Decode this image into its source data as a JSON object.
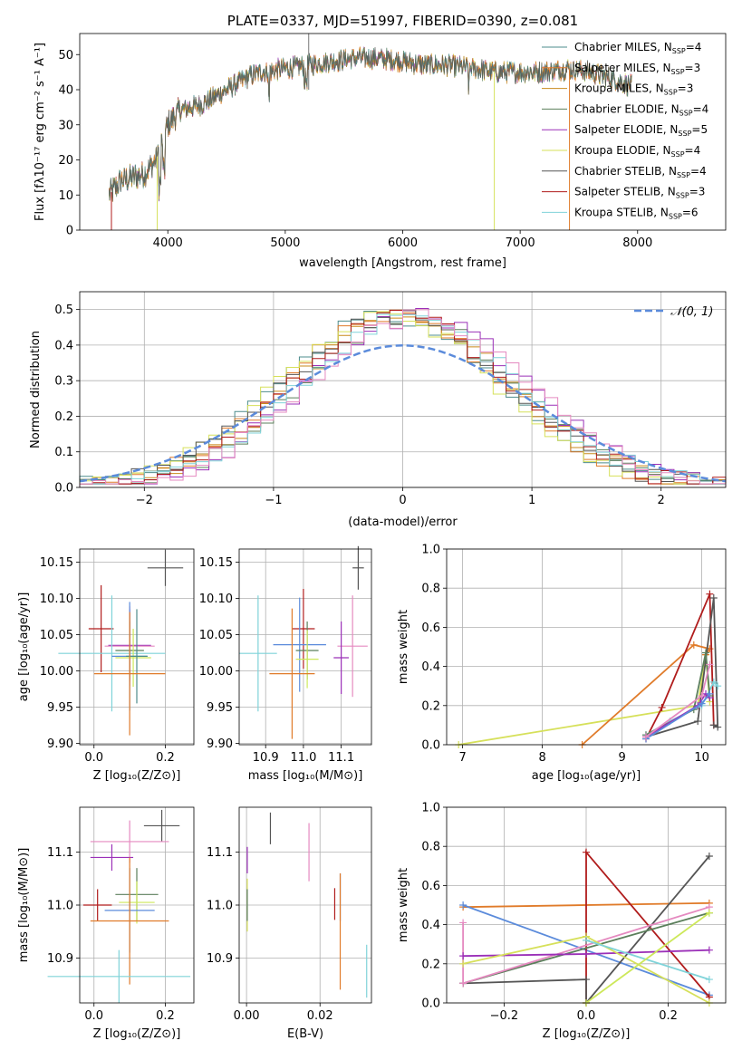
{
  "figure": {
    "colors": {
      "Chabrier MILES": "#4d8c8c",
      "Salpeter MILES": "#e07b2a",
      "Kroupa MILES": "#c98a1b",
      "Chabrier ELODIE": "#5b7f5b",
      "Salpeter ELODIE": "#9b30b8",
      "Kroupa ELODIE": "#d6e05a",
      "Chabrier STELIB": "#555555",
      "Salpeter STELIB": "#b01c1c",
      "Kroupa STELIB": "#7fd3d9",
      "gaussian": "#5b8bdb",
      "extra_pink": "#e58ac0",
      "extra_blue": "#5b8bdb",
      "extra_lime": "#cde85a"
    }
  },
  "chart_data": [
    {
      "id": "spectrum",
      "type": "line",
      "title": "PLATE=0337, MJD=51997, FIBERID=0390, z=0.081",
      "xlabel": "wavelength [Angstrom, rest frame]",
      "ylabel": "Flux [fλ10⁻¹⁷ erg cm⁻² s⁻¹ A⁻¹]",
      "xlim": [
        3250,
        8750
      ],
      "ylim": [
        0,
        56
      ],
      "xticks": [
        "4000",
        "5000",
        "6000",
        "7000",
        "8000"
      ],
      "yticks": [
        "0",
        "10",
        "20",
        "30",
        "40",
        "50"
      ],
      "legend_position": "upper-right",
      "legend": [
        {
          "label": "Chabrier MILES, N",
          "sub": "SSP",
          "eq": "=4"
        },
        {
          "label": "Salpeter MILES, N",
          "sub": "SSP",
          "eq": "=3"
        },
        {
          "label": "Kroupa MILES, N",
          "sub": "SSP",
          "eq": "=3"
        },
        {
          "label": "Chabrier ELODIE, N",
          "sub": "SSP",
          "eq": "=4"
        },
        {
          "label": "Salpeter ELODIE, N",
          "sub": "SSP",
          "eq": "=5"
        },
        {
          "label": "Kroupa ELODIE, N",
          "sub": "SSP",
          "eq": "=4"
        },
        {
          "label": "Chabrier STELIB, N",
          "sub": "SSP",
          "eq": "=4"
        },
        {
          "label": "Salpeter STELIB, N",
          "sub": "SSP",
          "eq": "=3"
        },
        {
          "label": "Kroupa STELIB, N",
          "sub": "SSP",
          "eq": "=6"
        }
      ],
      "continuum": [
        [
          3500,
          10
        ],
        [
          3600,
          14
        ],
        [
          3700,
          15
        ],
        [
          3800,
          16
        ],
        [
          3900,
          20
        ],
        [
          4000,
          30
        ],
        [
          4100,
          34
        ],
        [
          4200,
          35
        ],
        [
          4300,
          36
        ],
        [
          4400,
          38
        ],
        [
          4500,
          40
        ],
        [
          4600,
          42
        ],
        [
          4700,
          44
        ],
        [
          4800,
          45
        ],
        [
          5000,
          46
        ],
        [
          5200,
          47
        ],
        [
          5400,
          48
        ],
        [
          5600,
          49
        ],
        [
          5800,
          49
        ],
        [
          6000,
          48
        ],
        [
          6200,
          47
        ],
        [
          6400,
          47
        ],
        [
          6600,
          46
        ],
        [
          6800,
          45
        ],
        [
          7000,
          45
        ],
        [
          7200,
          45
        ],
        [
          7400,
          46
        ],
        [
          7600,
          45
        ],
        [
          7800,
          43
        ],
        [
          7950,
          41
        ]
      ]
    },
    {
      "id": "residuals",
      "type": "histogram",
      "xlabel": "(data-model)/error",
      "ylabel": "Normed distribution",
      "xlim": [
        -2.5,
        2.5
      ],
      "ylim": [
        0,
        0.55
      ],
      "xticks": [
        "−2",
        "−1",
        "0",
        "1",
        "2"
      ],
      "yticks": [
        "0.0",
        "0.1",
        "0.2",
        "0.3",
        "0.4",
        "0.5"
      ],
      "legend": [
        "𝒩(0, 1)"
      ],
      "gaussian": {
        "mean": 0,
        "sigma": 1
      }
    },
    {
      "id": "age_vs_Z",
      "type": "errorbar",
      "xlabel": "Z [log₁₀(Z/Z⊙)]",
      "ylabel": "age  [log₁₀(age/yr)]",
      "xlim": [
        -0.04,
        0.28
      ],
      "ylim": [
        9.898,
        10.168
      ],
      "xticks": [
        "0.0",
        "0.2"
      ],
      "yticks": [
        "9.90",
        "9.95",
        "10.00",
        "10.05",
        "10.10",
        "10.15"
      ],
      "points": [
        {
          "series": "Chabrier STELIB",
          "x": 0.2,
          "y": 10.142,
          "xerr": 0.05,
          "yerr": 0.025
        },
        {
          "series": "Salpeter STELIB",
          "x": 0.02,
          "y": 10.058,
          "xerr": 0.035,
          "yerr": 0.06
        },
        {
          "series": "Salpeter ELODIE",
          "x": 0.1,
          "y": 10.035,
          "xerr": 0.06,
          "yerr": 0.05
        },
        {
          "series": "extra_pink",
          "x": 0.1,
          "y": 10.034,
          "xerr": 0.07,
          "yerr": 0.055
        },
        {
          "series": "Chabrier ELODIE",
          "x": 0.1,
          "y": 10.028,
          "xerr": 0.04,
          "yerr": 0.04
        },
        {
          "series": "Kroupa STELIB",
          "x": 0.05,
          "y": 10.024,
          "xerr": 0.15,
          "yerr": 0.08
        },
        {
          "series": "extra_lime",
          "x": 0.11,
          "y": 10.018,
          "xerr": 0.05,
          "yerr": 0.04
        },
        {
          "series": "extra_blue",
          "x": 0.1,
          "y": 10.02,
          "xerr": 0.05,
          "yerr": 0.075
        },
        {
          "series": "Chabrier MILES",
          "x": 0.12,
          "y": 10.02,
          "xerr": 0.03,
          "yerr": 0.065
        },
        {
          "series": "Salpeter MILES",
          "x": 0.1,
          "y": 9.996,
          "xerr": 0.1,
          "yerr": 0.085
        }
      ]
    },
    {
      "id": "age_vs_mass",
      "type": "errorbar",
      "xlabel": "mass [log₁₀(M/M⊙)]",
      "ylabel": "",
      "xlim": [
        10.83,
        11.18
      ],
      "ylim": [
        9.898,
        10.168
      ],
      "xticks": [
        "10.9",
        "11.0",
        "11.1"
      ],
      "yticks": [
        "9.90",
        "9.95",
        "10.00",
        "10.05",
        "10.10",
        "10.15"
      ],
      "points": [
        {
          "series": "Chabrier STELIB",
          "x": 11.145,
          "y": 10.142,
          "xerr": 0.015,
          "yerr": 0.03
        },
        {
          "series": "Salpeter STELIB",
          "x": 11.0,
          "y": 10.058,
          "xerr": 0.03,
          "yerr": 0.055
        },
        {
          "series": "extra_pink",
          "x": 11.13,
          "y": 10.034,
          "xerr": 0.04,
          "yerr": 0.07
        },
        {
          "series": "extra_blue",
          "x": 10.99,
          "y": 10.036,
          "xerr": 0.07,
          "yerr": 0.065
        },
        {
          "series": "Chabrier ELODIE",
          "x": 11.01,
          "y": 10.028,
          "xerr": 0.03,
          "yerr": 0.04
        },
        {
          "series": "Kroupa STELIB",
          "x": 10.88,
          "y": 10.024,
          "xerr": 0.05,
          "yerr": 0.08
        },
        {
          "series": "Salpeter ELODIE",
          "x": 11.1,
          "y": 10.018,
          "xerr": 0.02,
          "yerr": 0.05
        },
        {
          "series": "extra_lime",
          "x": 11.01,
          "y": 10.016,
          "xerr": 0.03,
          "yerr": 0.04
        },
        {
          "series": "Salpeter MILES",
          "x": 10.97,
          "y": 9.996,
          "xerr": 0.06,
          "yerr": 0.09
        }
      ]
    },
    {
      "id": "weight_vs_age",
      "type": "line",
      "xlabel": "age  [log₁₀(age/yr)]",
      "ylabel": "mass weight",
      "xlim": [
        6.8,
        10.3
      ],
      "ylim": [
        0,
        1
      ],
      "xticks": [
        "7",
        "8",
        "9",
        "10"
      ],
      "yticks": [
        "0.0",
        "0.2",
        "0.4",
        "0.6",
        "0.8",
        "1.0"
      ],
      "series": [
        {
          "name": "Kroupa ELODIE",
          "x": [
            6.95,
            9.95,
            10.05,
            10.1
          ],
          "y": [
            0.0,
            0.2,
            0.46,
            0.22
          ]
        },
        {
          "name": "Salpeter MILES",
          "x": [
            8.5,
            9.9,
            10.1,
            10.05
          ],
          "y": [
            0.0,
            0.51,
            0.49,
            0.46
          ]
        },
        {
          "name": "Salpeter STELIB",
          "x": [
            9.3,
            9.5,
            10.1,
            10.15
          ],
          "y": [
            0.03,
            0.19,
            0.77,
            0.1
          ]
        },
        {
          "name": "Chabrier STELIB",
          "x": [
            9.3,
            9.95,
            10.15,
            10.2,
            10.15
          ],
          "y": [
            0.04,
            0.12,
            0.75,
            0.09,
            0.1
          ]
        },
        {
          "name": "Kroupa STELIB",
          "x": [
            9.3,
            9.6,
            10.0,
            10.15,
            10.2
          ],
          "y": [
            0.05,
            0.12,
            0.2,
            0.32,
            0.3
          ]
        },
        {
          "name": "Chabrier ELODIE",
          "x": [
            9.3,
            9.9,
            10.05,
            10.1
          ],
          "y": [
            0.05,
            0.18,
            0.47,
            0.25
          ]
        },
        {
          "name": "Salpeter ELODIE",
          "x": [
            9.3,
            9.95,
            10.05,
            10.1
          ],
          "y": [
            0.04,
            0.2,
            0.26,
            0.24
          ]
        },
        {
          "name": "extra_blue",
          "x": [
            9.3,
            10.0,
            10.1
          ],
          "y": [
            0.03,
            0.21,
            0.26
          ]
        },
        {
          "name": "extra_pink",
          "x": [
            9.3,
            10.0,
            10.1
          ],
          "y": [
            0.04,
            0.25,
            0.41
          ]
        }
      ]
    },
    {
      "id": "mass_vs_Z",
      "type": "errorbar",
      "xlabel": "Z [log₁₀(Z/Z⊙)]",
      "ylabel": "mass [log₁₀(M/M⊙)]",
      "xlim": [
        -0.04,
        0.28
      ],
      "ylim": [
        10.815,
        11.185
      ],
      "xticks": [
        "0.0",
        "0.2"
      ],
      "yticks": [
        "10.9",
        "11.0",
        "11.1"
      ],
      "points": [
        {
          "series": "Chabrier STELIB",
          "x": 0.19,
          "y": 11.15,
          "xerr": 0.05,
          "yerr": 0.03
        },
        {
          "series": "extra_pink",
          "x": 0.1,
          "y": 11.12,
          "xerr": 0.11,
          "yerr": 0.04
        },
        {
          "series": "Salpeter ELODIE",
          "x": 0.05,
          "y": 11.09,
          "xerr": 0.06,
          "yerr": 0.025
        },
        {
          "series": "Chabrier ELODIE",
          "x": 0.12,
          "y": 11.02,
          "xerr": 0.06,
          "yerr": 0.05
        },
        {
          "series": "Salpeter STELIB",
          "x": 0.01,
          "y": 11.0,
          "xerr": 0.04,
          "yerr": 0.03
        },
        {
          "series": "extra_lime",
          "x": 0.12,
          "y": 11.005,
          "xerr": 0.05,
          "yerr": 0.04
        },
        {
          "series": "extra_blue",
          "x": 0.1,
          "y": 10.99,
          "xerr": 0.07,
          "yerr": 0.08
        },
        {
          "series": "Salpeter MILES",
          "x": 0.1,
          "y": 10.97,
          "xerr": 0.11,
          "yerr": 0.12
        },
        {
          "series": "Kroupa STELIB",
          "x": 0.07,
          "y": 10.865,
          "xerr": 0.2,
          "yerr": 0.05
        }
      ]
    },
    {
      "id": "mass_vs_ebv",
      "type": "errorbar",
      "xlabel": "E(B-V)",
      "ylabel": "",
      "xlim": [
        -0.002,
        0.034
      ],
      "ylim": [
        10.815,
        11.185
      ],
      "xticks": [
        "0.00",
        "0.02"
      ],
      "yticks": [
        "10.9",
        "11.0",
        "11.1"
      ],
      "points": [
        {
          "series": "Chabrier STELIB",
          "x": 0.0065,
          "y": 11.145,
          "xerr": 0,
          "yerr": 0.03
        },
        {
          "series": "extra_pink",
          "x": 0.017,
          "y": 11.1,
          "xerr": 0,
          "yerr": 0.055
        },
        {
          "series": "Salpeter ELODIE",
          "x": 0.0002,
          "y": 11.085,
          "xerr": 0,
          "yerr": 0.025
        },
        {
          "series": "Kroupa ELODIE",
          "x": 0.0002,
          "y": 11.0,
          "xerr": 0,
          "yerr": 0.05
        },
        {
          "series": "Chabrier ELODIE",
          "x": 0.0002,
          "y": 11.0,
          "xerr": 0,
          "yerr": 0.03
        },
        {
          "series": "Salpeter STELIB",
          "x": 0.024,
          "y": 11.002,
          "xerr": 0,
          "yerr": 0.03
        },
        {
          "series": "extra_blue",
          "x": 0.0255,
          "y": 11.015,
          "xerr": 0,
          "yerr": 0.045
        },
        {
          "series": "Salpeter MILES",
          "x": 0.0255,
          "y": 10.95,
          "xerr": 0,
          "yerr": 0.11
        },
        {
          "series": "Kroupa STELIB",
          "x": 0.0327,
          "y": 10.875,
          "xerr": 0,
          "yerr": 0.05
        }
      ]
    },
    {
      "id": "weight_vs_Z",
      "type": "line",
      "xlabel": "Z [log₁₀(Z/Z⊙)]",
      "ylabel": "mass weight",
      "xlim": [
        -0.34,
        0.34
      ],
      "ylim": [
        0,
        1
      ],
      "xticks": [
        "−0.2",
        "0.0",
        "0.2"
      ],
      "yticks": [
        "0.0",
        "0.2",
        "0.4",
        "0.6",
        "0.8",
        "1.0"
      ],
      "series": [
        {
          "name": "Salpeter MILES",
          "x": [
            -0.3,
            0.3
          ],
          "y": [
            0.49,
            0.51
          ]
        },
        {
          "name": "extra_blue",
          "x": [
            -0.3,
            0.3
          ],
          "y": [
            0.5,
            0.04
          ]
        },
        {
          "name": "Salpeter STELIB",
          "x": [
            0.0,
            0.0,
            0.3
          ],
          "y": [
            0.0,
            0.77,
            0.03
          ]
        },
        {
          "name": "Chabrier STELIB",
          "x": [
            -0.3,
            0.0,
            0.0,
            0.3
          ],
          "y": [
            0.1,
            0.12,
            0.0,
            0.75
          ]
        },
        {
          "name": "Chabrier ELODIE",
          "x": [
            -0.3,
            0.3
          ],
          "y": [
            0.1,
            0.46
          ]
        },
        {
          "name": "extra_pink",
          "x": [
            -0.3,
            -0.3,
            0.3
          ],
          "y": [
            0.41,
            0.1,
            0.49
          ]
        },
        {
          "name": "Salpeter ELODIE",
          "x": [
            -0.3,
            0.0,
            0.3
          ],
          "y": [
            0.24,
            0.25,
            0.27
          ]
        },
        {
          "name": "Kroupa ELODIE",
          "x": [
            -0.3,
            0.0,
            0.3
          ],
          "y": [
            0.2,
            0.34,
            0.0
          ]
        },
        {
          "name": "Kroupa STELIB",
          "x": [
            0.0,
            0.3
          ],
          "y": [
            0.32,
            0.12
          ]
        },
        {
          "name": "extra_lime",
          "x": [
            0.0,
            0.3
          ],
          "y": [
            0.0,
            0.46
          ]
        }
      ]
    }
  ]
}
